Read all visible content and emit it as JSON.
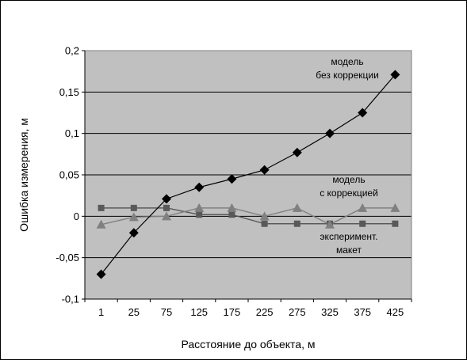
{
  "chart_data": {
    "type": "line",
    "xlabel": "Расстояние до объекта, м",
    "ylabel": "Ошибка измерения, м",
    "categories": [
      "1",
      "25",
      "75",
      "125",
      "175",
      "225",
      "275",
      "325",
      "375",
      "425"
    ],
    "ylim": [
      -0.1,
      0.2
    ],
    "yticks": [
      "-0,1",
      "-0,05",
      "0",
      "0,05",
      "0,1",
      "0,15",
      "0,2"
    ],
    "ytick_values": [
      -0.1,
      -0.05,
      0,
      0.05,
      0.1,
      0.15,
      0.2
    ],
    "grid": "horizontal",
    "plot_background": "#c0c0c0",
    "series": [
      {
        "key": "no_correction",
        "marker": "diamond",
        "color": "#000000",
        "values": [
          -0.07,
          -0.02,
          0.021,
          0.035,
          0.045,
          0.056,
          0.077,
          0.1,
          0.125,
          0.171
        ]
      },
      {
        "key": "with_correction",
        "marker": "triangle",
        "color": "#808080",
        "values": [
          -0.01,
          -0.001,
          0.0,
          0.01,
          0.01,
          0.0,
          0.01,
          -0.01,
          0.01,
          0.01
        ]
      },
      {
        "key": "experiment",
        "marker": "square",
        "color": "#595959",
        "values": [
          0.01,
          0.01,
          0.01,
          0.002,
          0.002,
          -0.009,
          -0.009,
          -0.009,
          -0.009,
          -0.009
        ]
      }
    ],
    "annotations": [
      {
        "key": "ann_no_corr",
        "lines": [
          "модель",
          "без коррекции"
        ]
      },
      {
        "key": "ann_corr",
        "lines": [
          "модель",
          "с коррекцией"
        ]
      },
      {
        "key": "ann_exp",
        "lines": [
          "эксперимент.",
          "макет"
        ]
      }
    ]
  }
}
